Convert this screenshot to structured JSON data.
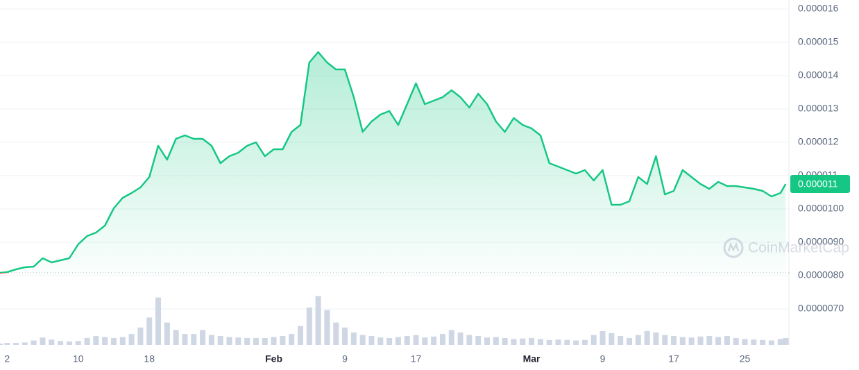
{
  "chart_data": {
    "type": "line",
    "color": "#16c784",
    "below_color": "#ea3943",
    "volume_color": "#cfd6e4",
    "watermark": "CoinMarketCap",
    "price_tag": "0.000011",
    "xlim": [
      1.2,
      89.8
    ],
    "ylim": [
      5.917e-06,
      1.6271e-05
    ],
    "vlim": [
      0,
      100
    ],
    "grid": true,
    "xticks": [
      {
        "value": 2,
        "label": "2"
      },
      {
        "value": 10,
        "label": "10"
      },
      {
        "value": 18,
        "label": "18"
      },
      {
        "value": 32,
        "label": "Feb"
      },
      {
        "value": 40,
        "label": "9"
      },
      {
        "value": 48,
        "label": "17"
      },
      {
        "value": 61,
        "label": "Mar"
      },
      {
        "value": 69,
        "label": "9"
      },
      {
        "value": 77,
        "label": "17"
      },
      {
        "value": 85,
        "label": "25"
      }
    ],
    "yticks": [
      1.6e-05,
      1.5e-05,
      1.4e-05,
      1.3e-05,
      1.2e-05,
      1.1e-05,
      {
        "value": 1e-05,
        "label": "0.0000100"
      },
      {
        "value": 9e-06,
        "label": "0.0000090"
      },
      {
        "value": 8e-06,
        "label": "0.0000080"
      },
      {
        "value": 7e-06,
        "label": "0.0000070"
      }
    ],
    "x": [
      1.2,
      2,
      3,
      4,
      5,
      6,
      7,
      8,
      9,
      10,
      11,
      12,
      13,
      14,
      15,
      16,
      17,
      18,
      19,
      20,
      21,
      22,
      23,
      24,
      25,
      26,
      27,
      28,
      29,
      30,
      31,
      32,
      33,
      34,
      35,
      36,
      37,
      38,
      39,
      40,
      41,
      42,
      43,
      44,
      45,
      46,
      47,
      48,
      49,
      50,
      51,
      52,
      53,
      54,
      55,
      56,
      57,
      58,
      59,
      60,
      61,
      62,
      63,
      64,
      65,
      66,
      67,
      68,
      69,
      70,
      71,
      72,
      73,
      74,
      75,
      76,
      77,
      78,
      79,
      80,
      81,
      82,
      83,
      84,
      85,
      86,
      87,
      88,
      89,
      89.6
    ],
    "values": [
      8.083e-06,
      8.104e-06,
      8.188e-06,
      8.25e-06,
      8.271e-06,
      8.521e-06,
      8.396e-06,
      8.458e-06,
      8.521e-06,
      8.938e-06,
      9.188e-06,
      9.292e-06,
      9.5e-06,
      1.0021e-05,
      1.0333e-05,
      1.0479e-05,
      1.0646e-05,
      1.0958e-05,
      1.1896e-05,
      1.1479e-05,
      1.2104e-05,
      1.2208e-05,
      1.2104e-05,
      1.2104e-05,
      1.1896e-05,
      1.1375e-05,
      1.1583e-05,
      1.1688e-05,
      1.1896e-05,
      1.2e-05,
      1.1583e-05,
      1.1792e-05,
      1.1792e-05,
      1.2313e-05,
      1.2521e-05,
      1.4396e-05,
      1.4708e-05,
      1.4396e-05,
      1.4188e-05,
      1.4188e-05,
      1.3354e-05,
      1.2313e-05,
      1.2625e-05,
      1.2833e-05,
      1.2938e-05,
      1.2521e-05,
      1.3146e-05,
      1.3771e-05,
      1.3146e-05,
      1.325e-05,
      1.3354e-05,
      1.3563e-05,
      1.3354e-05,
      1.3042e-05,
      1.3458e-05,
      1.3146e-05,
      1.2625e-05,
      1.2313e-05,
      1.2729e-05,
      1.2521e-05,
      1.2417e-05,
      1.2208e-05,
      1.1375e-05,
      1.1271e-05,
      1.1167e-05,
      1.1063e-05,
      1.1167e-05,
      1.0854e-05,
      1.1167e-05,
      1.0125e-05,
      1.0125e-05,
      1.0229e-05,
      1.0958e-05,
      1.075e-05,
      1.1583e-05,
      1.0438e-05,
      1.0542e-05,
      1.1167e-05,
      1.0958e-05,
      1.075e-05,
      1.0604e-05,
      1.0813e-05,
      1.0688e-05,
      1.0688e-05,
      1.0646e-05,
      1.0604e-05,
      1.0542e-05,
      1.0375e-05,
      1.0479e-05,
      1.075e-05
    ],
    "volume": [
      3,
      4,
      4,
      5,
      9,
      15,
      11,
      8,
      7,
      8,
      14,
      18,
      16,
      14,
      16,
      22,
      35,
      55,
      95,
      45,
      30,
      22,
      22,
      30,
      20,
      18,
      16,
      15,
      14,
      14,
      14,
      16,
      18,
      22,
      38,
      75,
      98,
      70,
      45,
      35,
      25,
      20,
      18,
      15,
      14,
      16,
      18,
      20,
      15,
      17,
      22,
      30,
      25,
      20,
      18,
      15,
      16,
      14,
      12,
      13,
      14,
      12,
      10,
      11,
      10,
      9,
      10,
      20,
      28,
      24,
      18,
      14,
      20,
      28,
      25,
      20,
      18,
      16,
      15,
      17,
      18,
      16,
      18,
      14,
      12,
      11,
      10,
      9,
      12,
      14
    ]
  }
}
